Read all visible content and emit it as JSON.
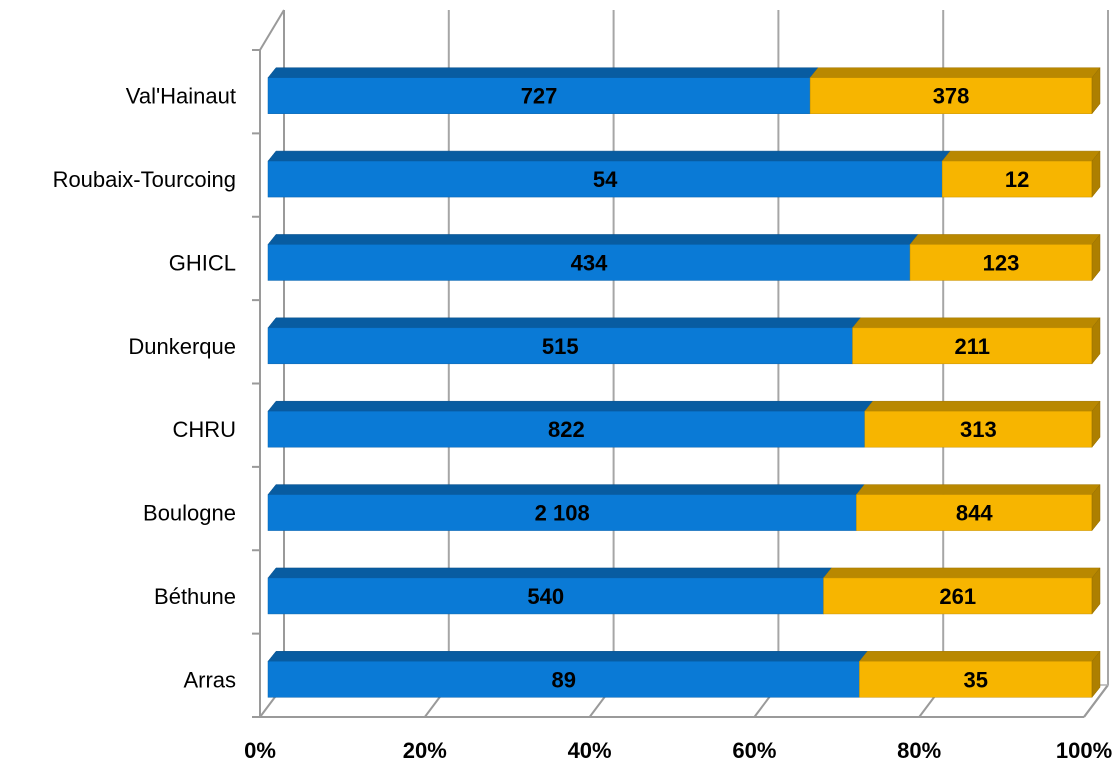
{
  "chart_data": {
    "type": "bar",
    "orientation": "horizontal",
    "stacked": "percent",
    "three_d": true,
    "categories": [
      "Arras",
      "Béthune",
      "Boulogne",
      "CHRU",
      "Dunkerque",
      "GHICL",
      "Roubaix-Tourcoing",
      "Val'Hainaut"
    ],
    "series": [
      {
        "color": "#0A7AD6",
        "values": [
          89,
          540,
          2108,
          822,
          515,
          434,
          54,
          727
        ],
        "labels": [
          "89",
          "540",
          "2 108",
          "822",
          "515",
          "434",
          "54",
          "727"
        ]
      },
      {
        "color": "#F7B500",
        "values": [
          35,
          261,
          844,
          313,
          211,
          123,
          12,
          378
        ],
        "labels": [
          "35",
          "261",
          "844",
          "313",
          "211",
          "123",
          "12",
          "378"
        ]
      }
    ],
    "xticks": [
      "0%",
      "20%",
      "40%",
      "60%",
      "80%",
      "100%"
    ],
    "xlim": [
      0,
      100
    ],
    "grid": true,
    "legend": "none"
  }
}
